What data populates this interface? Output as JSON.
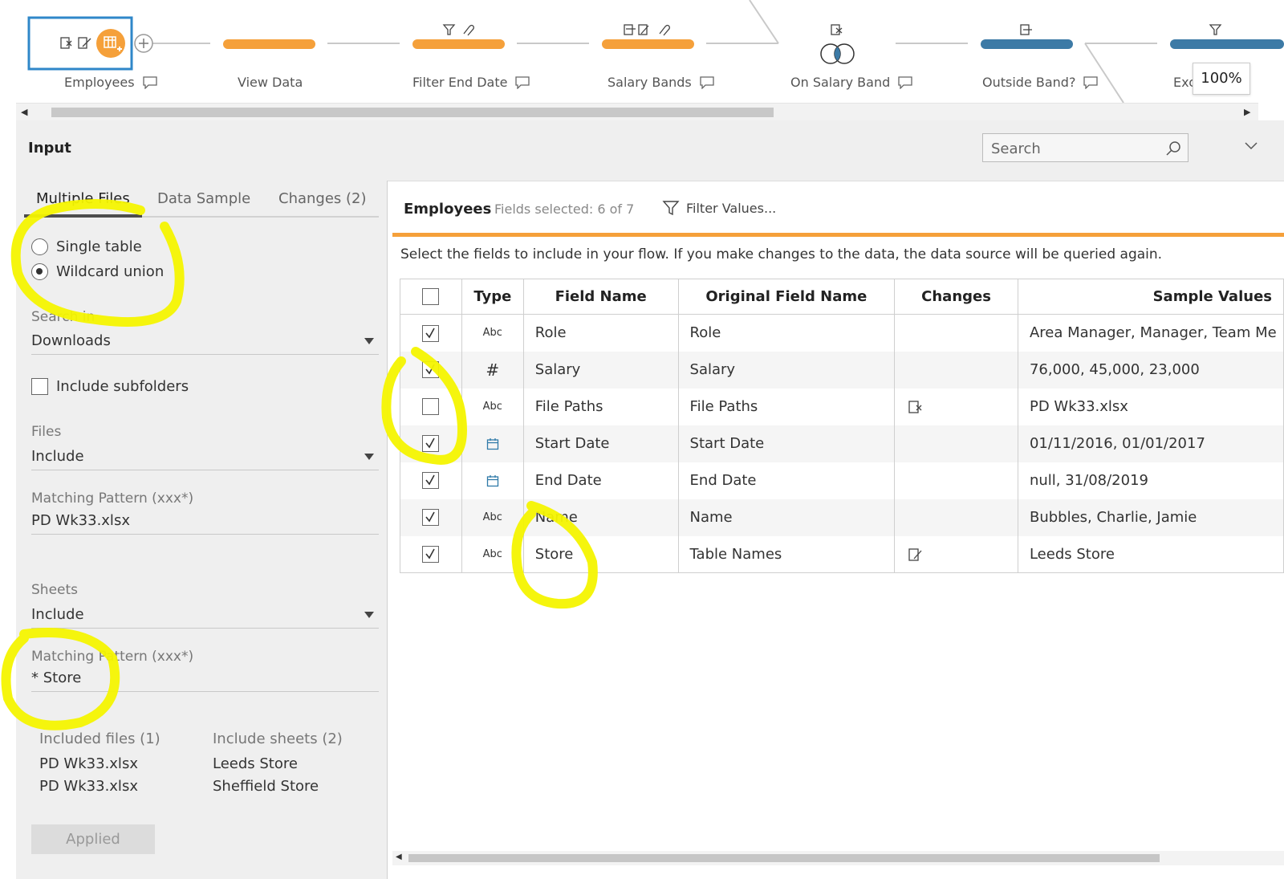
{
  "flow": {
    "zoom": "100%",
    "nodes": [
      {
        "label": "Employees",
        "color": "#f5a03a"
      },
      {
        "label": "View Data",
        "color": "#f5a03a"
      },
      {
        "label": "Filter End Date",
        "color": "#f5a03a"
      },
      {
        "label": "Salary Bands",
        "color": "#f5a03a"
      },
      {
        "label": "On Salary Band",
        "color": "#3c7aa6"
      },
      {
        "label": "Outside Band?",
        "color": "#3c7aa6"
      },
      {
        "label": "Exc",
        "color": "#3c7aa6"
      }
    ]
  },
  "panel": {
    "title": "Input",
    "search_placeholder": "Search"
  },
  "left": {
    "tabs": [
      {
        "label": "Multiple Files",
        "active": true
      },
      {
        "label": "Data Sample",
        "active": false
      },
      {
        "label": "Changes (2)",
        "active": false
      }
    ],
    "radio_single": "Single table",
    "radio_wildcard": "Wildcard union",
    "search_in_label": "Search in",
    "search_in_value": "Downloads",
    "include_subfolders": "Include subfolders",
    "files_label": "Files",
    "files_value": "Include",
    "files_pattern_label": "Matching Pattern (xxx*)",
    "files_pattern_value": "PD Wk33.xlsx",
    "sheets_label": "Sheets",
    "sheets_value": "Include",
    "sheets_pattern_label": "Matching Pattern (xxx*)",
    "sheets_pattern_value": "* Store",
    "included_files_header": "Included files (1)",
    "included_files": [
      "PD Wk33.xlsx",
      "PD Wk33.xlsx"
    ],
    "include_sheets_header": "Include sheets (2)",
    "include_sheets": [
      "Leeds Store",
      "Sheffield Store"
    ],
    "applied_label": "Applied"
  },
  "right": {
    "title": "Employees",
    "fields_selected": "Fields selected: 6 of 7",
    "filter_label": "Filter Values...",
    "instruction": "Select the fields to include in your flow. If you make changes to the data, the data source will be queried again.",
    "columns": {
      "type": "Type",
      "field_name": "Field Name",
      "original": "Original Field Name",
      "changes": "Changes",
      "sample": "Sample Values"
    },
    "rows": [
      {
        "checked": true,
        "type": "Abc",
        "field": "Role",
        "original": "Role",
        "change": "",
        "sample": "Area Manager, Manager, Team Me"
      },
      {
        "checked": true,
        "type": "#",
        "field": "Salary",
        "original": "Salary",
        "change": "",
        "sample": "76,000, 45,000, 23,000"
      },
      {
        "checked": false,
        "type": "Abc",
        "field": "File Paths",
        "original": "File Paths",
        "change": "remove",
        "sample": "PD Wk33.xlsx"
      },
      {
        "checked": true,
        "type": "date",
        "field": "Start Date",
        "original": "Start Date",
        "change": "",
        "sample": "01/11/2016, 01/01/2017"
      },
      {
        "checked": true,
        "type": "date",
        "field": "End Date",
        "original": "End Date",
        "change": "",
        "sample": "null, 31/08/2019"
      },
      {
        "checked": true,
        "type": "Abc",
        "field": "Name",
        "original": "Name",
        "change": "",
        "sample": "Bubbles, Charlie, Jamie"
      },
      {
        "checked": true,
        "type": "Abc",
        "field": "Store",
        "original": "Table Names",
        "change": "rename",
        "sample": "Leeds Store"
      }
    ]
  }
}
